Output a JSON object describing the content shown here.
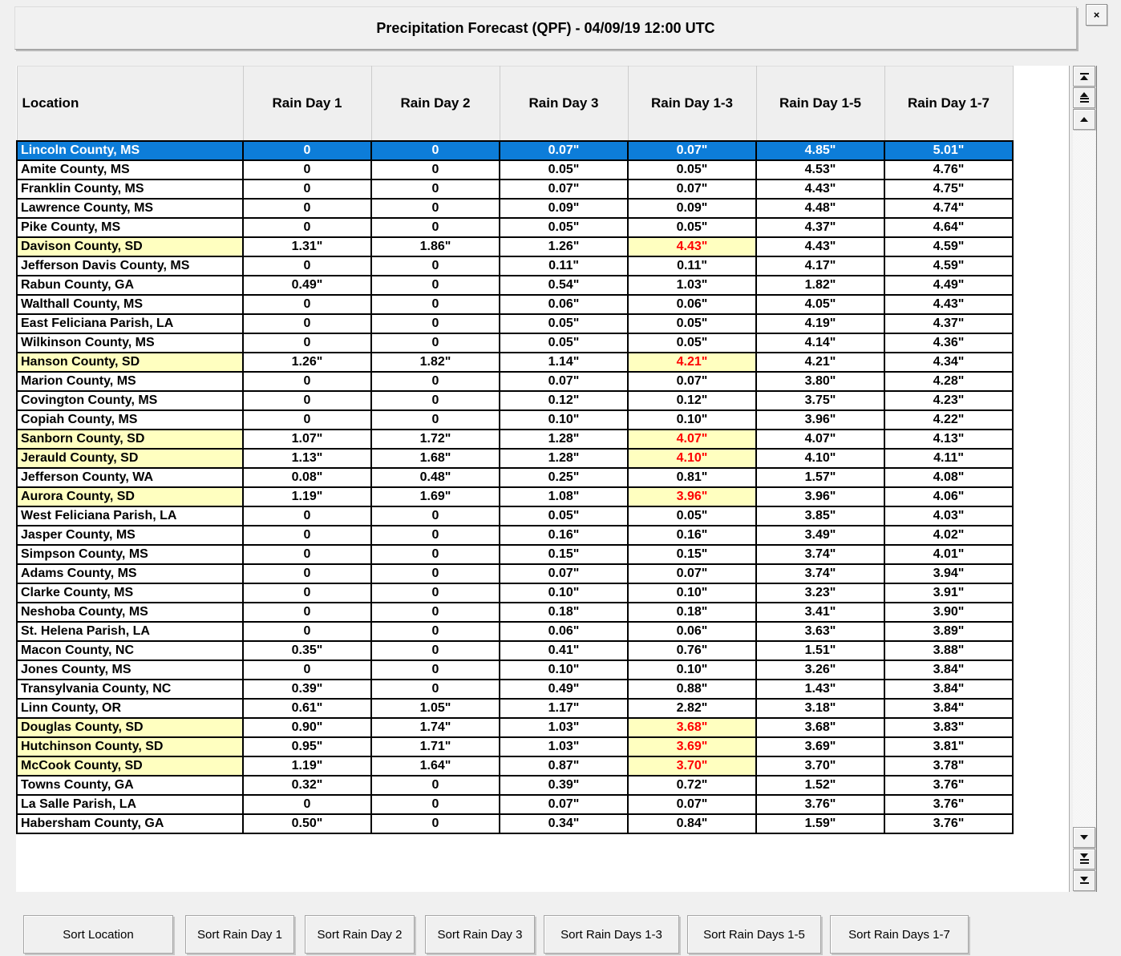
{
  "title": "Precipitation Forecast (QPF) - 04/09/19 12:00 UTC",
  "close_label": "×",
  "colors": {
    "selected_row_bg": "#0d7dd9",
    "highlight_bg": "#ffffc0",
    "alert_text": "#ff0000",
    "page_bg": "#f0f0f0"
  },
  "table": {
    "columns": [
      "Location",
      "Rain Day 1",
      "Rain Day 2",
      "Rain Day 3",
      "Rain Day 1-3",
      "Rain Day 1-5",
      "Rain Day 1-7"
    ],
    "rows": [
      {
        "location": "Lincoln County, MS",
        "values": [
          "0",
          "0",
          "0.07\"",
          "0.07\"",
          "4.85\"",
          "5.01\""
        ],
        "selected": true
      },
      {
        "location": "Amite County, MS",
        "values": [
          "0",
          "0",
          "0.05\"",
          "0.05\"",
          "4.53\"",
          "4.76\""
        ]
      },
      {
        "location": "Franklin County, MS",
        "values": [
          "0",
          "0",
          "0.07\"",
          "0.07\"",
          "4.43\"",
          "4.75\""
        ]
      },
      {
        "location": "Lawrence County, MS",
        "values": [
          "0",
          "0",
          "0.09\"",
          "0.09\"",
          "4.48\"",
          "4.74\""
        ]
      },
      {
        "location": "Pike County, MS",
        "values": [
          "0",
          "0",
          "0.05\"",
          "0.05\"",
          "4.37\"",
          "4.64\""
        ]
      },
      {
        "location": "Davison County, SD",
        "values": [
          "1.31\"",
          "1.86\"",
          "1.26\"",
          "4.43\"",
          "4.43\"",
          "4.59\""
        ],
        "highlight": true
      },
      {
        "location": "Jefferson Davis County, MS",
        "values": [
          "0",
          "0",
          "0.11\"",
          "0.11\"",
          "4.17\"",
          "4.59\""
        ]
      },
      {
        "location": "Rabun County, GA",
        "values": [
          "0.49\"",
          "0",
          "0.54\"",
          "1.03\"",
          "1.82\"",
          "4.49\""
        ]
      },
      {
        "location": "Walthall County, MS",
        "values": [
          "0",
          "0",
          "0.06\"",
          "0.06\"",
          "4.05\"",
          "4.43\""
        ]
      },
      {
        "location": "East Feliciana Parish, LA",
        "values": [
          "0",
          "0",
          "0.05\"",
          "0.05\"",
          "4.19\"",
          "4.37\""
        ]
      },
      {
        "location": "Wilkinson County, MS",
        "values": [
          "0",
          "0",
          "0.05\"",
          "0.05\"",
          "4.14\"",
          "4.36\""
        ]
      },
      {
        "location": "Hanson County, SD",
        "values": [
          "1.26\"",
          "1.82\"",
          "1.14\"",
          "4.21\"",
          "4.21\"",
          "4.34\""
        ],
        "highlight": true
      },
      {
        "location": "Marion County, MS",
        "values": [
          "0",
          "0",
          "0.07\"",
          "0.07\"",
          "3.80\"",
          "4.28\""
        ]
      },
      {
        "location": "Covington County, MS",
        "values": [
          "0",
          "0",
          "0.12\"",
          "0.12\"",
          "3.75\"",
          "4.23\""
        ]
      },
      {
        "location": "Copiah County, MS",
        "values": [
          "0",
          "0",
          "0.10\"",
          "0.10\"",
          "3.96\"",
          "4.22\""
        ]
      },
      {
        "location": "Sanborn County, SD",
        "values": [
          "1.07\"",
          "1.72\"",
          "1.28\"",
          "4.07\"",
          "4.07\"",
          "4.13\""
        ],
        "highlight": true
      },
      {
        "location": "Jerauld County, SD",
        "values": [
          "1.13\"",
          "1.68\"",
          "1.28\"",
          "4.10\"",
          "4.10\"",
          "4.11\""
        ],
        "highlight": true
      },
      {
        "location": "Jefferson County, WA",
        "values": [
          "0.08\"",
          "0.48\"",
          "0.25\"",
          "0.81\"",
          "1.57\"",
          "4.08\""
        ]
      },
      {
        "location": "Aurora County, SD",
        "values": [
          "1.19\"",
          "1.69\"",
          "1.08\"",
          "3.96\"",
          "3.96\"",
          "4.06\""
        ],
        "highlight": true
      },
      {
        "location": "West Feliciana Parish, LA",
        "values": [
          "0",
          "0",
          "0.05\"",
          "0.05\"",
          "3.85\"",
          "4.03\""
        ]
      },
      {
        "location": "Jasper County, MS",
        "values": [
          "0",
          "0",
          "0.16\"",
          "0.16\"",
          "3.49\"",
          "4.02\""
        ]
      },
      {
        "location": "Simpson County, MS",
        "values": [
          "0",
          "0",
          "0.15\"",
          "0.15\"",
          "3.74\"",
          "4.01\""
        ]
      },
      {
        "location": "Adams County, MS",
        "values": [
          "0",
          "0",
          "0.07\"",
          "0.07\"",
          "3.74\"",
          "3.94\""
        ]
      },
      {
        "location": "Clarke County, MS",
        "values": [
          "0",
          "0",
          "0.10\"",
          "0.10\"",
          "3.23\"",
          "3.91\""
        ]
      },
      {
        "location": "Neshoba County, MS",
        "values": [
          "0",
          "0",
          "0.18\"",
          "0.18\"",
          "3.41\"",
          "3.90\""
        ]
      },
      {
        "location": "St. Helena Parish, LA",
        "values": [
          "0",
          "0",
          "0.06\"",
          "0.06\"",
          "3.63\"",
          "3.89\""
        ]
      },
      {
        "location": "Macon County, NC",
        "values": [
          "0.35\"",
          "0",
          "0.41\"",
          "0.76\"",
          "1.51\"",
          "3.88\""
        ]
      },
      {
        "location": "Jones County, MS",
        "values": [
          "0",
          "0",
          "0.10\"",
          "0.10\"",
          "3.26\"",
          "3.84\""
        ]
      },
      {
        "location": "Transylvania County, NC",
        "values": [
          "0.39\"",
          "0",
          "0.49\"",
          "0.88\"",
          "1.43\"",
          "3.84\""
        ]
      },
      {
        "location": "Linn County, OR",
        "values": [
          "0.61\"",
          "1.05\"",
          "1.17\"",
          "2.82\"",
          "3.18\"",
          "3.84\""
        ]
      },
      {
        "location": "Douglas County, SD",
        "values": [
          "0.90\"",
          "1.74\"",
          "1.03\"",
          "3.68\"",
          "3.68\"",
          "3.83\""
        ],
        "highlight": true
      },
      {
        "location": "Hutchinson County, SD",
        "values": [
          "0.95\"",
          "1.71\"",
          "1.03\"",
          "3.69\"",
          "3.69\"",
          "3.81\""
        ],
        "highlight": true
      },
      {
        "location": "McCook County, SD",
        "values": [
          "1.19\"",
          "1.64\"",
          "0.87\"",
          "3.70\"",
          "3.70\"",
          "3.78\""
        ],
        "highlight": true
      },
      {
        "location": "Towns County, GA",
        "values": [
          "0.32\"",
          "0",
          "0.39\"",
          "0.72\"",
          "1.52\"",
          "3.76\""
        ]
      },
      {
        "location": "La Salle Parish, LA",
        "values": [
          "0",
          "0",
          "0.07\"",
          "0.07\"",
          "3.76\"",
          "3.76\""
        ]
      },
      {
        "location": "Habersham County, GA",
        "values": [
          "0.50\"",
          "0",
          "0.34\"",
          "0.84\"",
          "1.59\"",
          "3.76\""
        ]
      }
    ]
  },
  "sort_buttons": [
    {
      "label": "Sort Location"
    },
    {
      "label": "Sort Rain Day 1"
    },
    {
      "label": "Sort Rain Day 2"
    },
    {
      "label": "Sort Rain Day 3"
    },
    {
      "label": "Sort Rain Days 1-3"
    },
    {
      "label": "Sort Rain Days 1-5"
    },
    {
      "label": "Sort Rain Days 1-7"
    }
  ],
  "scrollbar": {
    "buttons": [
      "scroll-to-top",
      "page-up",
      "line-up",
      "line-down",
      "page-down",
      "scroll-to-bottom"
    ]
  }
}
